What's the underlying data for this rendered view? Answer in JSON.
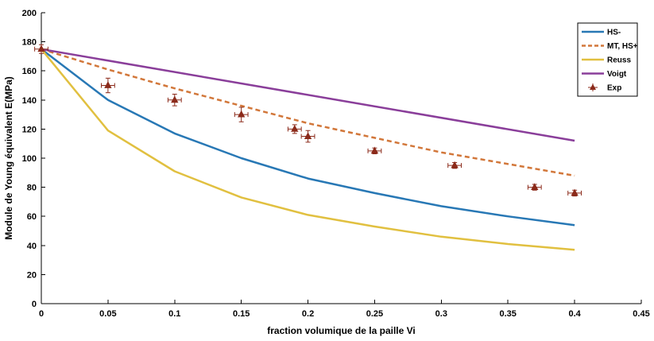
{
  "chart_data": {
    "type": "line",
    "title": "",
    "xlabel": "fraction volumique de la paille Vi",
    "ylabel": "Module de Young équivalent E(MPa)",
    "xlim": [
      0,
      0.45
    ],
    "ylim": [
      0,
      200
    ],
    "x_ticks": [
      0,
      0.05,
      0.1,
      0.15,
      0.2,
      0.25,
      0.3,
      0.35,
      0.4,
      0.45
    ],
    "x_tick_labels": [
      "0",
      "0.05",
      "0.1",
      "0.15",
      "0.2",
      "0.25",
      "0.3",
      "0.35",
      "0.4",
      "0.45"
    ],
    "y_ticks": [
      0,
      20,
      40,
      60,
      80,
      100,
      120,
      140,
      160,
      180,
      200
    ],
    "y_tick_labels": [
      "0",
      "20",
      "40",
      "60",
      "80",
      "100",
      "120",
      "140",
      "160",
      "180",
      "200"
    ],
    "grid": false,
    "legend_position": "top-right",
    "series": [
      {
        "name": "HS-",
        "style": "solid",
        "color": "#2878b5",
        "x": [
          0,
          0.05,
          0.1,
          0.15,
          0.2,
          0.25,
          0.3,
          0.35,
          0.4
        ],
        "y": [
          175,
          140,
          117,
          100,
          86,
          76,
          67,
          60,
          54
        ]
      },
      {
        "name": "MT, HS+",
        "style": "dashed",
        "color": "#d2773a",
        "x": [
          0,
          0.05,
          0.1,
          0.15,
          0.2,
          0.25,
          0.3,
          0.35,
          0.4
        ],
        "y": [
          175,
          161,
          148,
          136,
          124,
          114,
          104,
          96,
          88
        ]
      },
      {
        "name": "Reuss",
        "style": "solid",
        "color": "#e1c040",
        "x": [
          0,
          0.05,
          0.1,
          0.15,
          0.2,
          0.25,
          0.3,
          0.35,
          0.4
        ],
        "y": [
          175,
          119,
          91,
          73,
          61,
          53,
          46,
          41,
          37
        ]
      },
      {
        "name": "Voigt",
        "style": "solid",
        "color": "#8a3e9a",
        "x": [
          0,
          0.4
        ],
        "y": [
          175,
          112
        ]
      },
      {
        "name": "Exp",
        "style": "marker",
        "color": "#8b2a1a",
        "x": [
          0,
          0.05,
          0.1,
          0.15,
          0.19,
          0.2,
          0.25,
          0.31,
          0.37,
          0.4
        ],
        "y": [
          175,
          150,
          140,
          130,
          120,
          115,
          105,
          95,
          80,
          76
        ],
        "y_err": [
          3,
          5,
          4,
          5,
          3,
          4,
          2,
          2,
          2,
          2
        ],
        "x_err": [
          0.005,
          0.005,
          0.005,
          0.005,
          0.005,
          0.005,
          0.005,
          0.005,
          0.005,
          0.005
        ]
      }
    ]
  }
}
